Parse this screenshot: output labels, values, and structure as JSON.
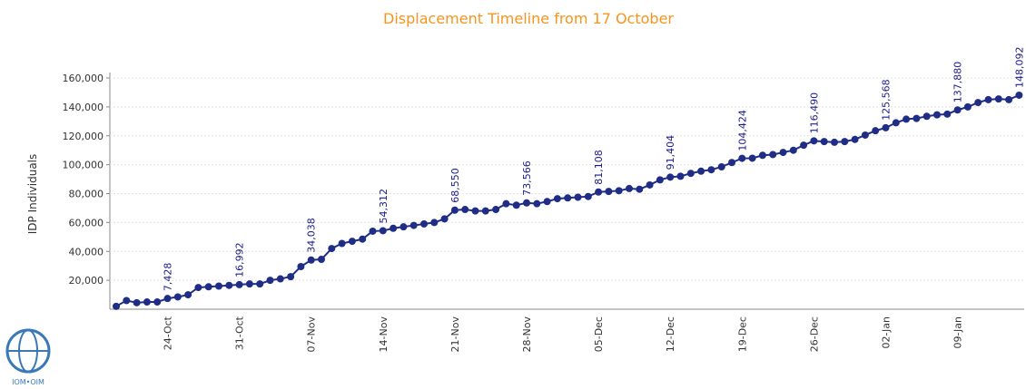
{
  "chart_data": {
    "type": "line",
    "title": "Displacement Timeline from 17 October",
    "y_label": "IDP Individuals",
    "logo_text": "IOM•OIM",
    "color": "#1f2d86",
    "grid": true,
    "ylim": [
      0,
      160000
    ],
    "yticks": [
      {
        "value": 20000,
        "label": "20,000"
      },
      {
        "value": 40000,
        "label": "40,000"
      },
      {
        "value": 60000,
        "label": "60,000"
      },
      {
        "value": 80000,
        "label": "80,000"
      },
      {
        "value": 100000,
        "label": "100,000"
      },
      {
        "value": 120000,
        "label": "120,000"
      },
      {
        "value": 140000,
        "label": "140,000"
      },
      {
        "value": 160000,
        "label": "160,000"
      }
    ],
    "categories": [
      null,
      null,
      null,
      null,
      null,
      "24-Oct",
      null,
      null,
      null,
      null,
      null,
      null,
      "31-Oct",
      null,
      null,
      null,
      null,
      null,
      null,
      "07-Nov",
      null,
      null,
      null,
      null,
      null,
      null,
      "14-Nov",
      null,
      null,
      null,
      null,
      null,
      null,
      "21-Nov",
      null,
      null,
      null,
      null,
      null,
      null,
      "28-Nov",
      null,
      null,
      null,
      null,
      null,
      null,
      "05-Dec",
      null,
      null,
      null,
      null,
      null,
      null,
      "12-Dec",
      null,
      null,
      null,
      null,
      null,
      null,
      "19-Dec",
      null,
      null,
      null,
      null,
      null,
      null,
      "26-Dec",
      null,
      null,
      null,
      null,
      null,
      null,
      "02-Jan",
      null,
      null,
      null,
      null,
      null,
      null,
      "09-Jan",
      null,
      null,
      null,
      null,
      null,
      null
    ],
    "values": [
      2000,
      6000,
      4500,
      5000,
      5000,
      7428,
      8500,
      10000,
      15000,
      15500,
      16000,
      16500,
      16992,
      17500,
      17500,
      20000,
      21000,
      22500,
      29500,
      34038,
      34500,
      42000,
      45500,
      47000,
      48500,
      54000,
      54312,
      56000,
      57000,
      58000,
      59000,
      60000,
      62500,
      68550,
      69000,
      68000,
      68000,
      69000,
      73000,
      72000,
      73566,
      73000,
      74500,
      76500,
      77000,
      77500,
      78000,
      81108,
      81500,
      82000,
      83500,
      83000,
      86000,
      89500,
      91404,
      92000,
      94000,
      95500,
      96500,
      98500,
      101500,
      104424,
      104500,
      106500,
      107000,
      108500,
      110000,
      113500,
      116490,
      116000,
      115500,
      116000,
      117500,
      120500,
      123500,
      125568,
      129000,
      131500,
      132000,
      133500,
      134500,
      135000,
      137880,
      140000,
      143000,
      145000,
      145500,
      145000,
      148092
    ],
    "value_labels": [
      null,
      null,
      null,
      null,
      null,
      "7,428",
      null,
      null,
      null,
      null,
      null,
      null,
      "16,992",
      null,
      null,
      null,
      null,
      null,
      null,
      "34,038",
      null,
      null,
      null,
      null,
      null,
      null,
      "54,312",
      null,
      null,
      null,
      null,
      null,
      null,
      "68,550",
      null,
      null,
      null,
      null,
      null,
      null,
      "73,566",
      null,
      null,
      null,
      null,
      null,
      null,
      "81,108",
      null,
      null,
      null,
      null,
      null,
      null,
      "91,404",
      null,
      null,
      null,
      null,
      null,
      null,
      "104,424",
      null,
      null,
      null,
      null,
      null,
      null,
      "116,490",
      null,
      null,
      null,
      null,
      null,
      null,
      "125,568",
      null,
      null,
      null,
      null,
      null,
      null,
      "137,880",
      null,
      null,
      null,
      null,
      null,
      "148,092"
    ]
  }
}
